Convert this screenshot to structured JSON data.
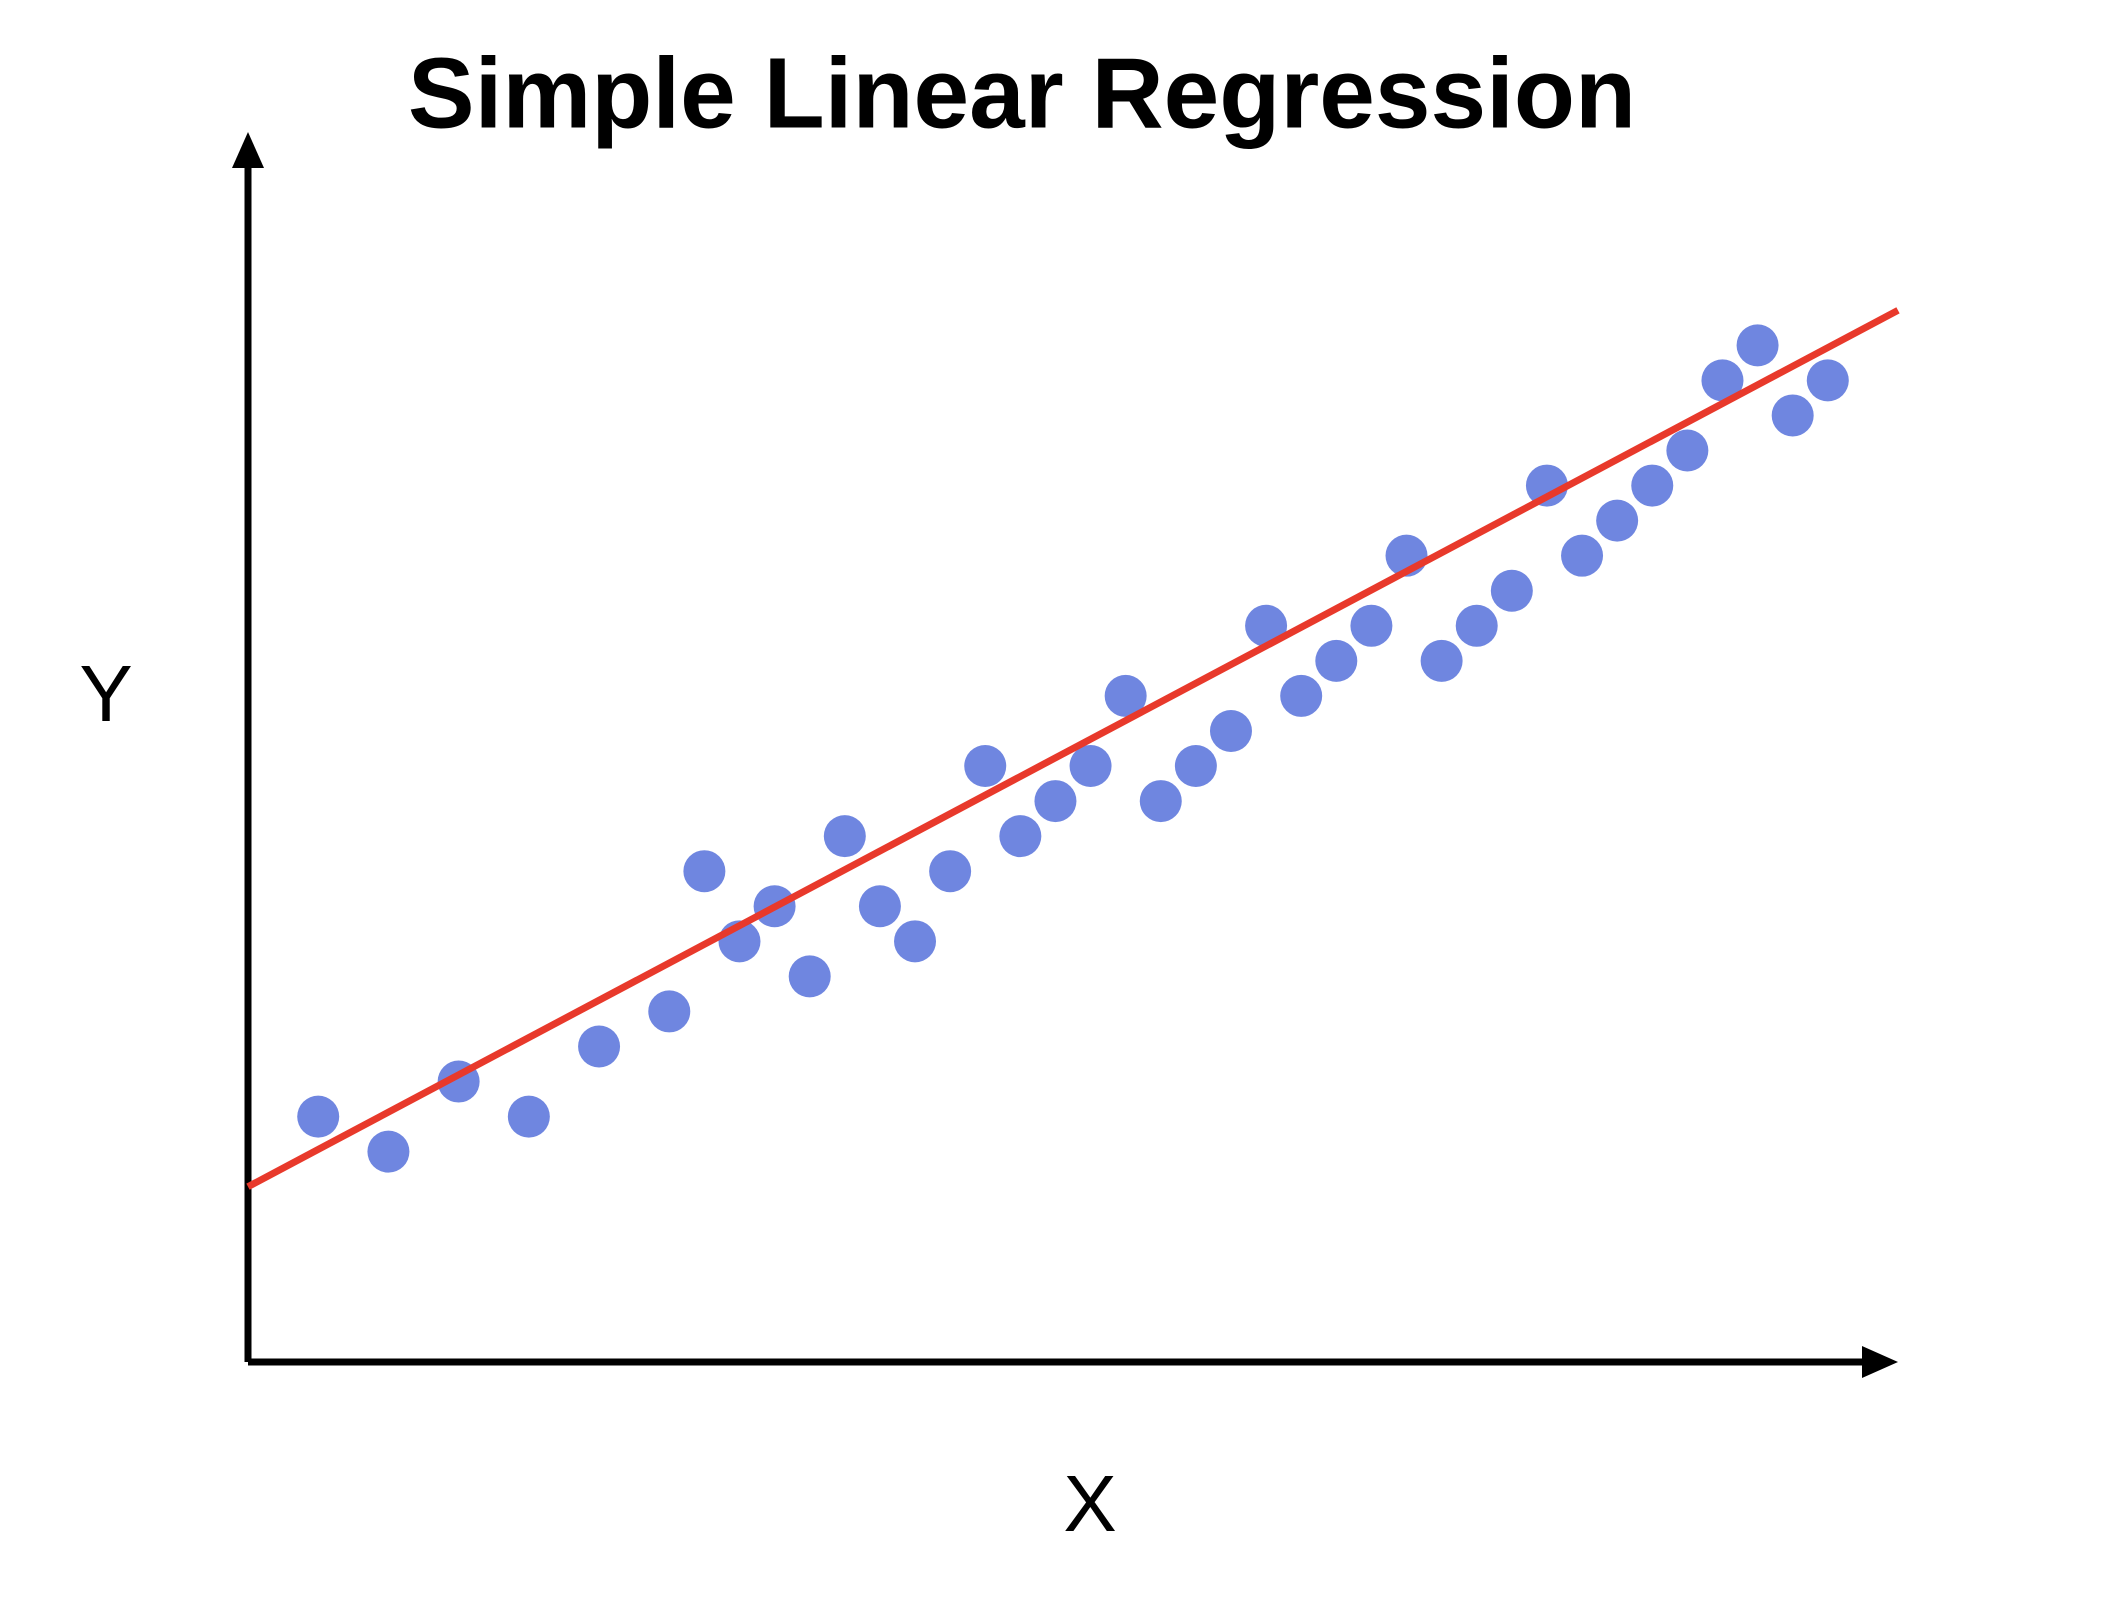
{
  "chart_data": {
    "type": "scatter",
    "title": "Simple Linear Regression",
    "x_label": "X",
    "y_label": "Y",
    "xlim": [
      0,
      47
    ],
    "ylim": [
      0,
      35
    ],
    "series": [
      {
        "color": "#6f86e0",
        "x": [
          2,
          4,
          6,
          8,
          10,
          12,
          13,
          14,
          15,
          16,
          17,
          18,
          19,
          20,
          21,
          22,
          23,
          24,
          25,
          26,
          27,
          28,
          29,
          30,
          31,
          32,
          33,
          34,
          35,
          36,
          37,
          38,
          39,
          40,
          41,
          42,
          43,
          44,
          45
        ],
        "values": [
          7,
          6,
          8,
          7,
          9,
          10,
          14,
          12,
          13,
          11,
          15,
          13,
          12,
          14,
          17,
          15,
          16,
          17,
          19,
          16,
          17,
          18,
          21,
          19,
          20,
          21,
          23,
          20,
          21,
          22,
          25,
          23,
          24,
          25,
          26,
          28,
          29,
          27,
          28
        ]
      }
    ],
    "fit_line": {
      "color": "#e8392b",
      "x": [
        0,
        47
      ],
      "values": [
        5,
        30
      ]
    }
  }
}
